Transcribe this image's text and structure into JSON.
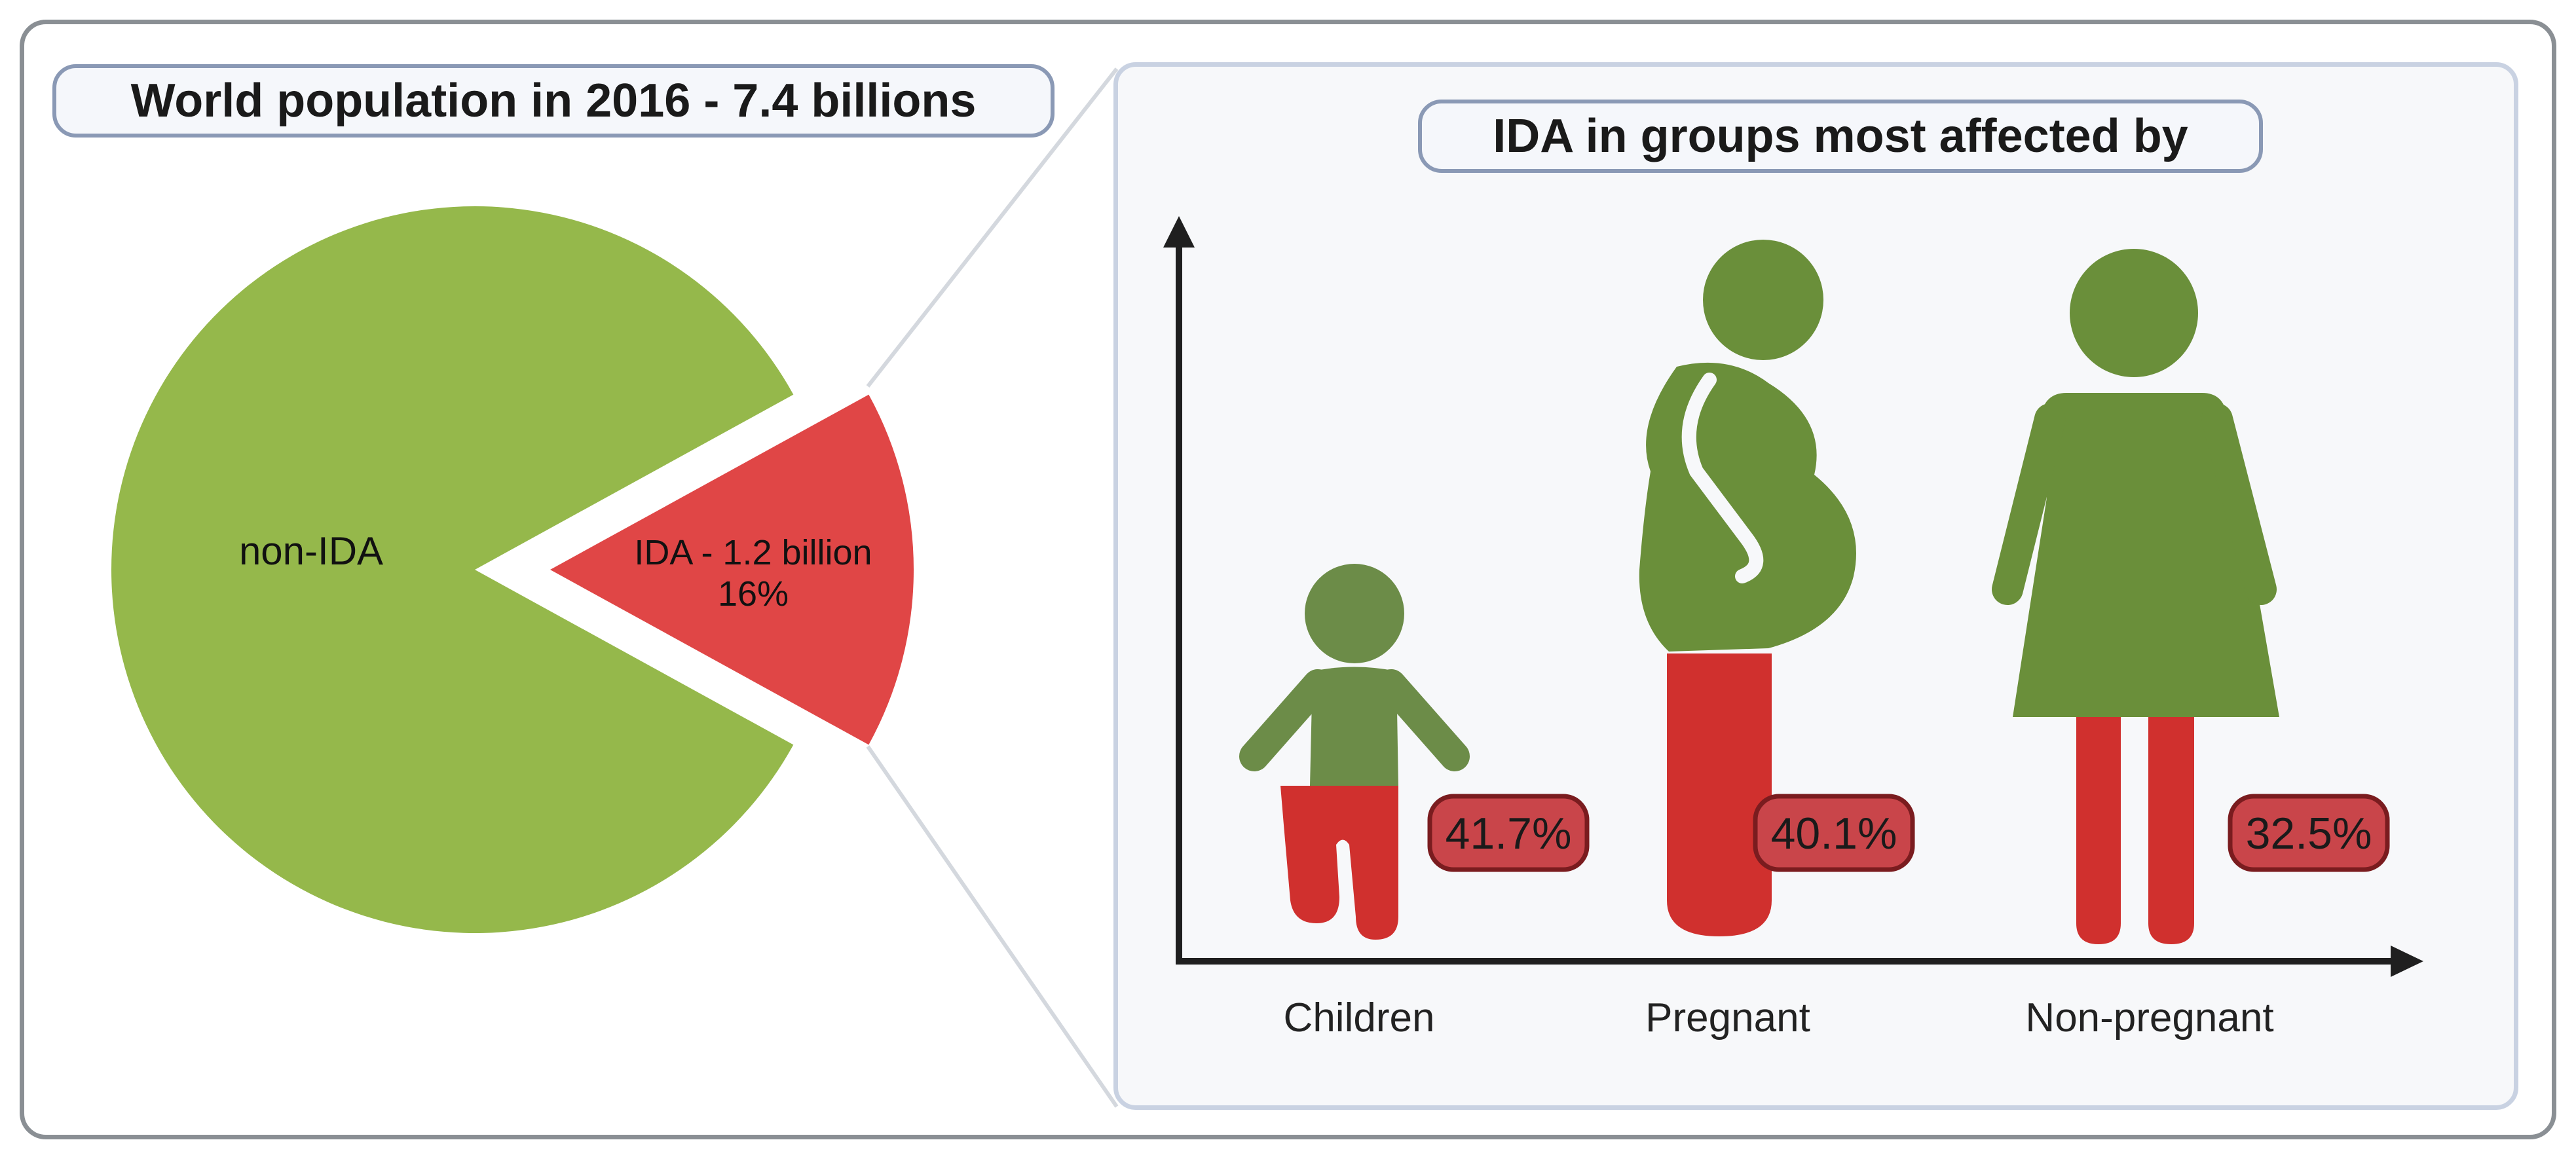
{
  "left_panel": {
    "title": "World population in 2016 - 7.4 billions"
  },
  "right_panel": {
    "title": "IDA in groups most affected by"
  },
  "chart_data": [
    {
      "type": "pie",
      "title": "World population in 2016 - 7.4 billions",
      "slices": [
        {
          "label": "non-IDA",
          "value": 84,
          "color": "#95b84b",
          "exploded": false,
          "label_lines": [
            "non-IDA"
          ]
        },
        {
          "label": "IDA - 1.2 billion",
          "value": 16,
          "color": "#e04646",
          "exploded": true,
          "label_lines": [
            "IDA - 1.2 billion",
            "16%"
          ]
        }
      ]
    },
    {
      "type": "bar",
      "title": "IDA in groups most affected by",
      "categories": [
        "Children",
        "Pregnant",
        "Non-pregnant"
      ],
      "values": [
        41.7,
        40.1,
        32.5
      ],
      "value_labels": [
        "41.7%",
        "40.1%",
        "32.5%"
      ],
      "ylim": [
        0,
        100
      ],
      "xlabel": "",
      "ylabel": "",
      "colors": {
        "figure": "#6a8f3a",
        "child_figure": "#6c8c48",
        "affected": "#d0302e",
        "badge_fill": "#c9454a",
        "badge_stroke": "#7a1c1f",
        "axis": "#1f1f1f"
      }
    }
  ]
}
